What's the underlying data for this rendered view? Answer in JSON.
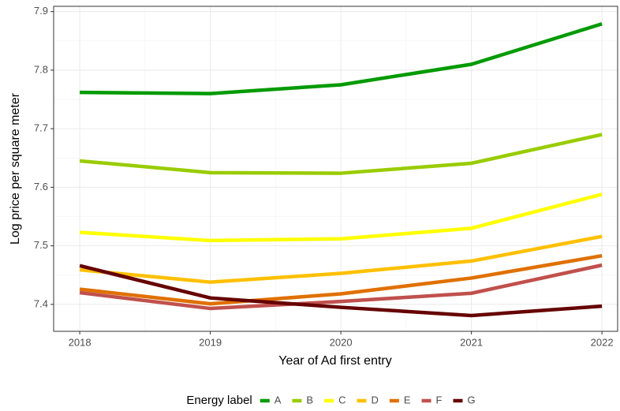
{
  "chart_data": {
    "type": "line",
    "x_label": "Year of Ad first entry",
    "y_label": "Log price per square meter",
    "legend_title": "Energy label",
    "legend_position": "bottom",
    "grid": true,
    "x": [
      2018,
      2019,
      2020,
      2021,
      2022
    ],
    "xlim": [
      2017.8,
      2022.12
    ],
    "xticks": [
      2018,
      2019,
      2020,
      2021,
      2022
    ],
    "ylim": [
      7.354,
      7.909
    ],
    "yticks": [
      7.4,
      7.5,
      7.6,
      7.7,
      7.8,
      7.9
    ],
    "series": [
      {
        "name": "A",
        "color": "#009a00",
        "values": [
          7.762,
          7.76,
          7.775,
          7.81,
          7.879
        ]
      },
      {
        "name": "B",
        "color": "#99cc00",
        "values": [
          7.645,
          7.625,
          7.624,
          7.641,
          7.69
        ]
      },
      {
        "name": "C",
        "color": "#ffff00",
        "values": [
          7.523,
          7.509,
          7.512,
          7.53,
          7.588
        ]
      },
      {
        "name": "D",
        "color": "#ffc000",
        "values": [
          7.459,
          7.438,
          7.453,
          7.474,
          7.516
        ]
      },
      {
        "name": "E",
        "color": "#e07000",
        "values": [
          7.426,
          7.401,
          7.418,
          7.445,
          7.483
        ]
      },
      {
        "name": "F",
        "color": "#c0504d",
        "values": [
          7.42,
          7.393,
          7.405,
          7.419,
          7.467
        ]
      },
      {
        "name": "G",
        "color": "#660000",
        "values": [
          7.466,
          7.411,
          7.395,
          7.381,
          7.397
        ]
      }
    ]
  }
}
